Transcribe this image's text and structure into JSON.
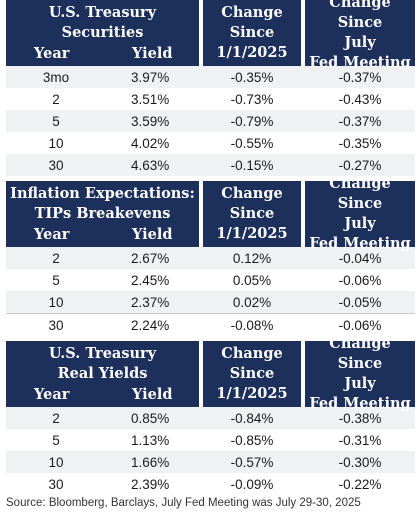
{
  "tables": [
    {
      "title_lines": [
        "U.S. Treasury",
        "Securities"
      ],
      "col_year": "Year",
      "col_yield": "Yield",
      "col_change_lines": [
        "Change",
        "Since",
        "1/1/2025"
      ],
      "col_july_lines": [
        "Change Since",
        "July",
        "Fed Meeting"
      ],
      "rows": [
        {
          "year": "3mo",
          "yield": "3.97%",
          "change": "-0.35%",
          "july": "-0.37%"
        },
        {
          "year": "2",
          "yield": "3.51%",
          "change": "-0.73%",
          "july": "-0.43%"
        },
        {
          "year": "5",
          "yield": "3.59%",
          "change": "-0.79%",
          "july": "-0.37%"
        },
        {
          "year": "10",
          "yield": "4.02%",
          "change": "-0.55%",
          "july": "-0.35%"
        },
        {
          "year": "30",
          "yield": "4.63%",
          "change": "-0.15%",
          "july": "-0.27%"
        }
      ]
    },
    {
      "title_lines": [
        "Inflation Expectations:",
        "TIPs Breakevens"
      ],
      "col_year": "Year",
      "col_yield": "Yield",
      "col_change_lines": [
        "Change",
        "Since",
        "1/1/2025"
      ],
      "col_july_lines": [
        "Change Since",
        "July",
        "Fed Meeting"
      ],
      "rows": [
        {
          "year": "2",
          "yield": "2.67%",
          "change": "0.12%",
          "july": "-0.04%"
        },
        {
          "year": "5",
          "yield": "2.45%",
          "change": "0.05%",
          "july": "-0.06%"
        },
        {
          "year": "10",
          "yield": "2.37%",
          "change": "0.02%",
          "july": "-0.05%"
        },
        {
          "year": "30",
          "yield": "2.24%",
          "change": "-0.08%",
          "july": "-0.06%"
        }
      ]
    },
    {
      "title_lines": [
        "U.S. Treasury",
        "Real Yields"
      ],
      "col_year": "Year",
      "col_yield": "Yield",
      "col_change_lines": [
        "Change",
        "Since",
        "1/1/2025"
      ],
      "col_july_lines": [
        "Change Since",
        "July",
        "Fed Meeting"
      ],
      "rows": [
        {
          "year": "2",
          "yield": "0.85%",
          "change": "-0.84%",
          "july": "-0.38%"
        },
        {
          "year": "5",
          "yield": "1.13%",
          "change": "-0.85%",
          "july": "-0.31%"
        },
        {
          "year": "10",
          "yield": "1.66%",
          "change": "-0.57%",
          "july": "-0.30%"
        },
        {
          "year": "30",
          "yield": "2.39%",
          "change": "-0.09%",
          "july": "-0.22%"
        }
      ]
    }
  ],
  "source": "Source: Bloomberg, Barclays, July Fed Meeting was July 29-30, 2025",
  "colors": {
    "header_bg": "#1d2f5b",
    "header_text": "#ffffff",
    "row_shade": "#f0f1f3"
  }
}
